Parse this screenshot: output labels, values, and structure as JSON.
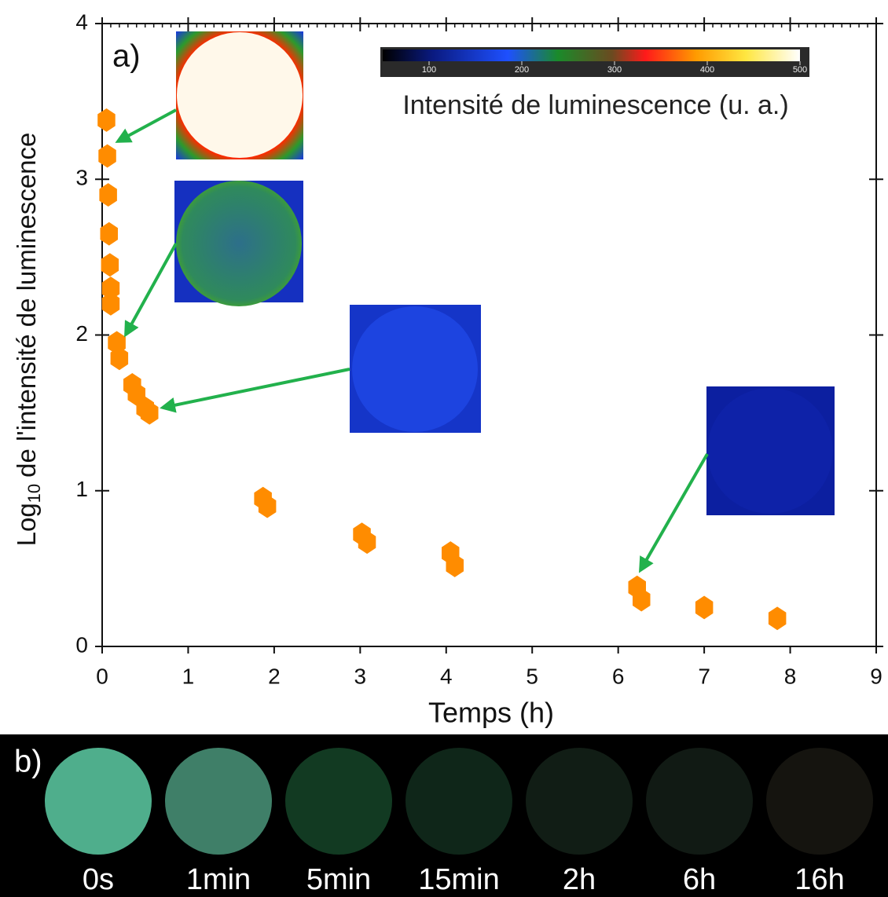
{
  "chart_data": {
    "type": "scatter",
    "panel_label": "a)",
    "xlabel": "Temps (h)",
    "ylabel": {
      "base": "Log",
      "subscript": "10",
      "rest": "de l'intensité de luminescence"
    },
    "x": [
      0.05,
      0.06,
      0.07,
      0.08,
      0.09,
      0.1,
      0.1,
      0.17,
      0.2,
      0.35,
      0.4,
      0.5,
      0.55,
      1.87,
      1.92,
      3.02,
      3.08,
      4.05,
      4.1,
      6.22,
      6.27,
      7.0,
      7.85
    ],
    "values": [
      3.38,
      3.15,
      2.9,
      2.65,
      2.45,
      2.3,
      2.2,
      1.95,
      1.85,
      1.68,
      1.62,
      1.53,
      1.5,
      0.95,
      0.9,
      0.72,
      0.67,
      0.6,
      0.52,
      0.38,
      0.3,
      0.25,
      0.18
    ],
    "color": "#ff8c00",
    "xlim": [
      0,
      9
    ],
    "xticks": [
      0,
      1,
      2,
      3,
      4,
      5,
      6,
      7,
      8,
      9
    ],
    "ylim": [
      0,
      4
    ],
    "yticks": [
      0,
      1,
      2,
      3,
      4
    ],
    "colorbar": {
      "label": "Intensité de luminescence (u. a.)",
      "lim": [
        50,
        500
      ],
      "ticks": [
        100,
        200,
        300,
        400,
        500
      ]
    },
    "panel_b": {
      "panel_label": "b)",
      "photos": [
        {
          "label": "0s",
          "color": "#4fae8c"
        },
        {
          "label": "1min",
          "color": "#3f7f68"
        },
        {
          "label": "5min",
          "color": "#123a22"
        },
        {
          "label": "15min",
          "color": "#0f2619"
        },
        {
          "label": "2h",
          "color": "#111d15"
        },
        {
          "label": "6h",
          "color": "#111a14"
        },
        {
          "label": "16h",
          "color": "#15140f"
        }
      ]
    }
  }
}
